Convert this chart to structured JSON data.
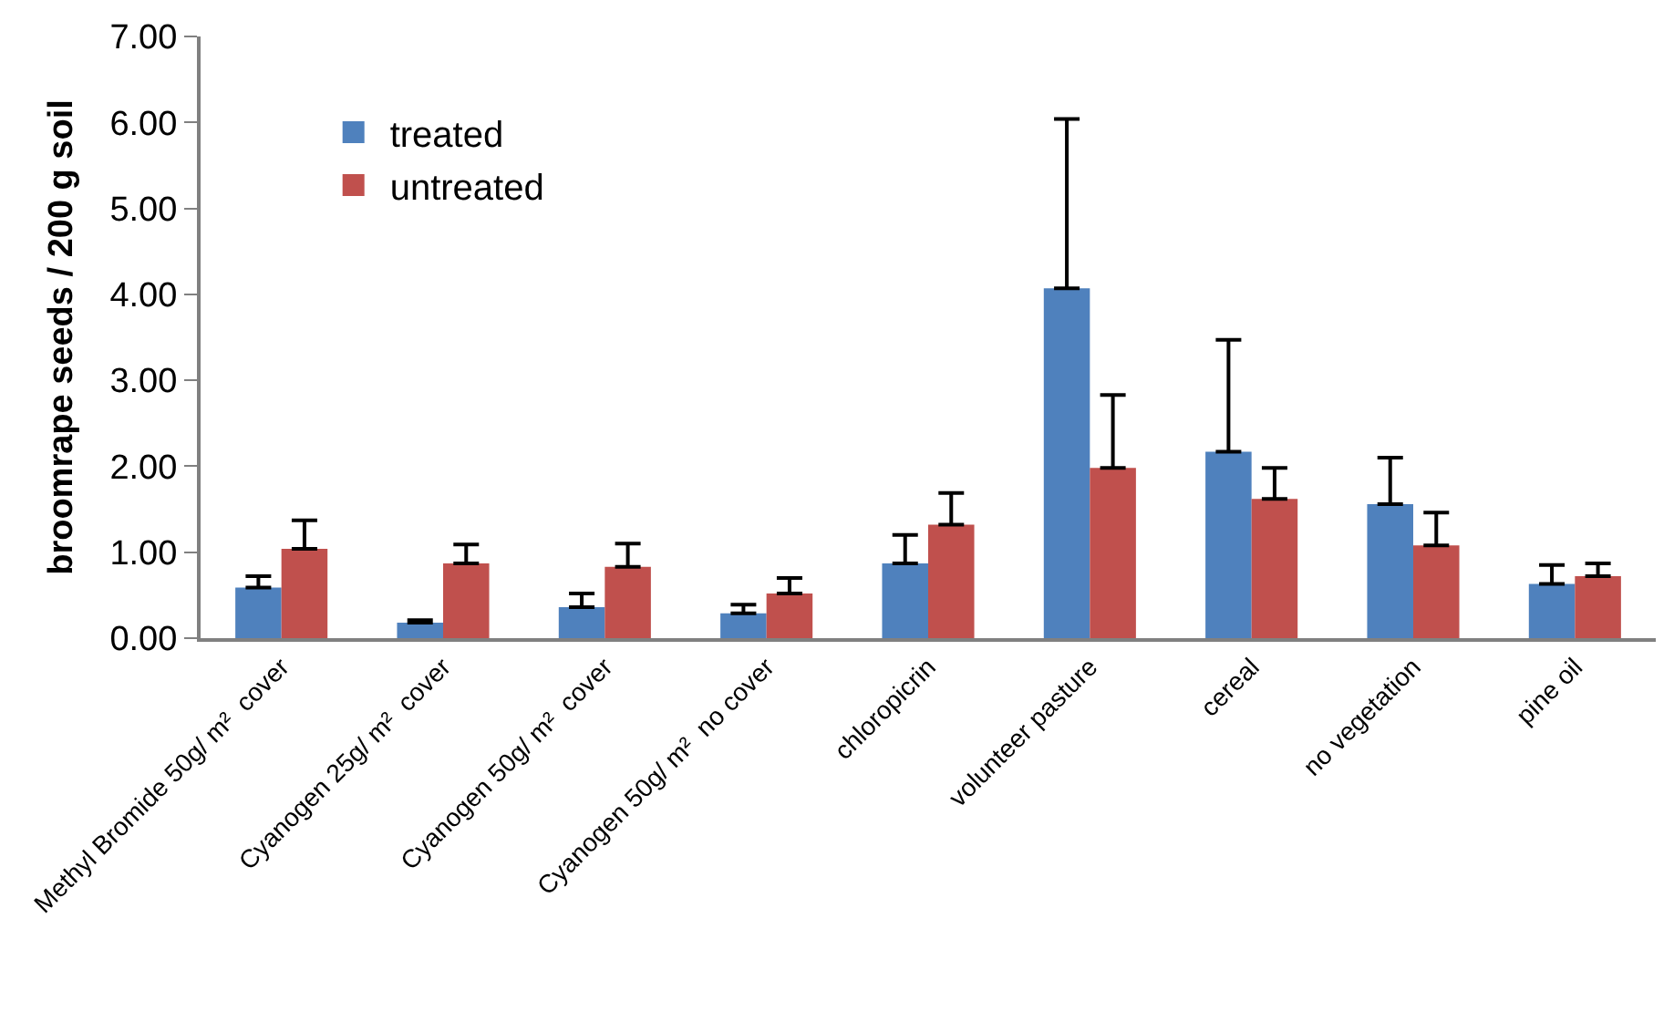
{
  "chart_data": {
    "type": "bar",
    "ylabel": "broomrape seeds / 200 g soil",
    "categories": [
      "Methyl Bromide 50g/ m²  cover",
      "Cyanogen 25g/ m²  cover",
      "Cyanogen 50g/ m²  cover",
      "Cyanogen 50g/ m²  no cover",
      "chloropicrin",
      "volunteer pasture",
      "cereal",
      "no vegetation",
      "pine oil"
    ],
    "series": [
      {
        "name": "treated",
        "color": "#4f81bd",
        "values": [
          0.59,
          0.18,
          0.36,
          0.29,
          0.87,
          4.07,
          2.17,
          1.56,
          0.63
        ],
        "errors": [
          [
            0.59,
            0.72
          ],
          [
            0.18,
            0.21
          ],
          [
            0.36,
            0.52
          ],
          [
            0.29,
            0.39
          ],
          [
            0.87,
            1.2
          ],
          [
            4.07,
            6.04
          ],
          [
            2.17,
            3.47
          ],
          [
            1.56,
            2.1
          ],
          [
            0.63,
            0.85
          ]
        ]
      },
      {
        "name": "untreated",
        "color": "#c0504d",
        "values": [
          1.04,
          0.87,
          0.83,
          0.52,
          1.32,
          1.98,
          1.62,
          1.08,
          0.72
        ],
        "errors": [
          [
            1.04,
            1.37
          ],
          [
            0.87,
            1.09
          ],
          [
            0.83,
            1.1
          ],
          [
            0.52,
            0.7
          ],
          [
            1.32,
            1.69
          ],
          [
            1.98,
            2.83
          ],
          [
            1.62,
            1.98
          ],
          [
            1.08,
            1.46
          ],
          [
            0.72,
            0.87
          ]
        ]
      }
    ],
    "ylim": [
      0,
      7
    ],
    "yticks": [
      {
        "value": 0,
        "label": "0.00"
      },
      {
        "value": 1,
        "label": "1.00"
      },
      {
        "value": 2,
        "label": "2.00"
      },
      {
        "value": 3,
        "label": "3.00"
      },
      {
        "value": 4,
        "label": "4.00"
      },
      {
        "value": 5,
        "label": "5.00"
      },
      {
        "value": 6,
        "label": "6.00"
      },
      {
        "value": 7,
        "label": "7.00"
      }
    ],
    "legend": "top left"
  }
}
